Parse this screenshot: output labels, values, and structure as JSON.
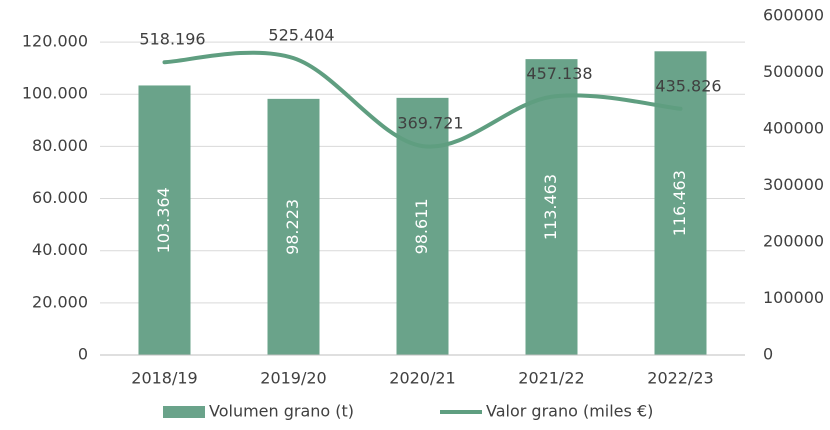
{
  "chart_data": {
    "type": "bar_line",
    "categories": [
      "2018/19",
      "2019/20",
      "2020/21",
      "2021/22",
      "2022/23"
    ],
    "series": [
      {
        "name": "Volumen grano (t)",
        "type": "bar",
        "color": "#6aa38a",
        "axis": "y",
        "values": [
          103364,
          98223,
          98611,
          113463,
          116463
        ],
        "value_labels": [
          "103.364",
          "98.223",
          "98.611",
          "113.463",
          "116.463"
        ]
      },
      {
        "name": "Valor grano (miles €)",
        "type": "line",
        "color": "#5f9e80",
        "axis": "y2",
        "values": [
          518196,
          525404,
          369721,
          457138,
          435826
        ],
        "value_labels": [
          "518.196",
          "525.404",
          "369.721",
          "457.138",
          "435.826"
        ]
      }
    ],
    "ylim": [
      0,
      130000
    ],
    "yticks": [
      0,
      {
        "value": 20000,
        "label": "20.000"
      },
      {
        "value": 40000,
        "label": "40.000"
      },
      {
        "value": 60000,
        "label": "60.000"
      },
      {
        "value": 80000,
        "label": "80.000"
      },
      {
        "value": 100000,
        "label": "100.000"
      },
      {
        "value": 120000,
        "label": "120.000"
      }
    ],
    "y2lim": [
      0,
      600000
    ],
    "y2ticks": [
      0,
      100000,
      200000,
      300000,
      400000,
      500000,
      600000
    ],
    "grid": true,
    "legend": "bottom"
  }
}
